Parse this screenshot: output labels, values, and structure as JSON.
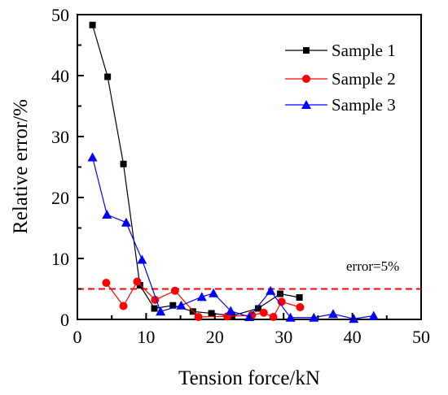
{
  "chart_data": {
    "type": "line",
    "title": "",
    "xlabel": "Tension force/kN",
    "ylabel": "Relative error/%",
    "xlim": [
      0,
      50
    ],
    "ylim": [
      0,
      50
    ],
    "x_ticks": [
      0,
      10,
      20,
      30,
      40,
      50
    ],
    "y_ticks": [
      0,
      10,
      20,
      30,
      40,
      50
    ],
    "grid": false,
    "legend_position": "top-right",
    "series": [
      {
        "name": "Sample 1",
        "color": "#000000",
        "marker": "square",
        "points": [
          [
            2.2,
            48.3
          ],
          [
            4.4,
            39.8
          ],
          [
            6.7,
            25.5
          ],
          [
            9.1,
            5.6
          ],
          [
            11.2,
            1.8
          ],
          [
            13.9,
            2.3
          ],
          [
            16.8,
            1.3
          ],
          [
            19.5,
            1.0
          ],
          [
            22.5,
            0.6
          ],
          [
            26.3,
            1.8
          ],
          [
            29.5,
            4.2
          ],
          [
            32.3,
            3.6
          ]
        ]
      },
      {
        "name": "Sample 2",
        "color": "#ff0000",
        "marker": "circle",
        "points": [
          [
            4.2,
            6.0
          ],
          [
            6.7,
            2.2
          ],
          [
            8.7,
            6.2
          ],
          [
            11.3,
            3.2
          ],
          [
            14.2,
            4.7
          ],
          [
            17.6,
            0.4
          ],
          [
            21.8,
            0.5
          ],
          [
            25.4,
            0.7
          ],
          [
            27.1,
            1.1
          ],
          [
            28.5,
            0.4
          ],
          [
            29.7,
            2.9
          ],
          [
            32.4,
            2.0
          ]
        ]
      },
      {
        "name": "Sample 3",
        "color": "#0000ff",
        "marker": "triangle",
        "points": [
          [
            2.2,
            26.6
          ],
          [
            4.3,
            17.2
          ],
          [
            7.1,
            15.9
          ],
          [
            9.4,
            9.8
          ],
          [
            12.1,
            1.3
          ],
          [
            15.1,
            2.3
          ],
          [
            18.1,
            3.7
          ],
          [
            19.8,
            4.3
          ],
          [
            22.3,
            1.4
          ],
          [
            25.0,
            0.4
          ],
          [
            28.1,
            4.7
          ],
          [
            31.0,
            0.3
          ],
          [
            34.4,
            0.3
          ],
          [
            37.2,
            0.9
          ],
          [
            40.2,
            0.1
          ],
          [
            43.1,
            0.6
          ]
        ]
      }
    ],
    "reference_line": {
      "y": 5,
      "label": "error=5%",
      "color": "#ff0000",
      "style": "dashed"
    }
  }
}
